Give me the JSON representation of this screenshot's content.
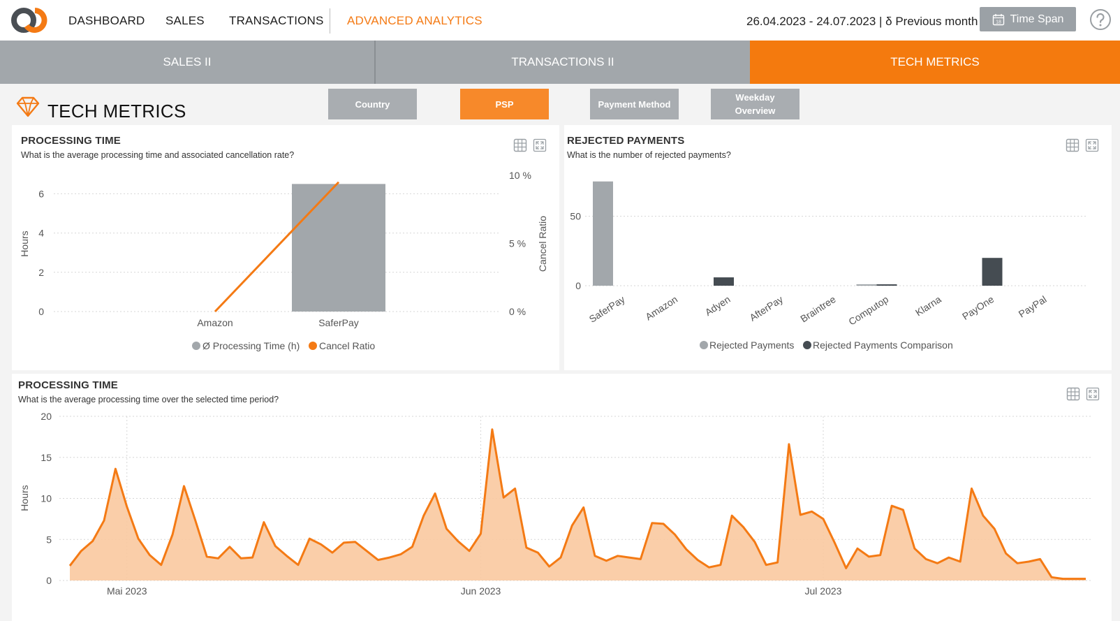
{
  "topnav": {
    "items": [
      "DASHBOARD",
      "SALES",
      "TRANSACTIONS",
      "ADVANCED ANALYTICS"
    ],
    "date_range": "26.04.2023 - 24.07.2023 | δ Previous month",
    "timespan_label": "Time Span",
    "calendar_icon_text": "18"
  },
  "subtabs": [
    "SALES II",
    "TRANSACTIONS II",
    "TECH METRICS"
  ],
  "section": {
    "title": "TECH METRICS",
    "filters": [
      "Country",
      "PSP",
      "Payment Method",
      "Weekday Overview"
    ]
  },
  "colors": {
    "accent": "#f47a14",
    "gray": "#a2a7ab",
    "dark": "#454c52"
  },
  "cards": {
    "processing_time_psp": {
      "title": "PROCESSING TIME",
      "subtitle": "What is the average processing time and associated cancellation rate?"
    },
    "rejected_payments": {
      "title": "REJECTED PAYMENTS",
      "subtitle": "What is the number of rejected payments?"
    },
    "processing_time_period": {
      "title": "PROCESSING TIME",
      "subtitle": "What is the average processing time over the selected time period?"
    }
  },
  "chart_data": [
    {
      "type": "bar",
      "categories": [
        "Amazon",
        "SaferPay"
      ],
      "series": [
        {
          "name": "Ø Processing Time (h)",
          "values": [
            0,
            6.5
          ],
          "axis": "left",
          "color": "#a2a7ab"
        },
        {
          "name": "Cancel Ratio",
          "values": [
            0,
            9.5
          ],
          "axis": "right",
          "kind": "line",
          "color": "#f47a14"
        }
      ],
      "ylabel": "Hours",
      "ylabel_right": "Cancel Ratio",
      "yticks": [
        "0",
        "2",
        "4",
        "6"
      ],
      "y2ticks": [
        "0 %",
        "5 %",
        "10 %"
      ],
      "ylim": [
        0,
        7
      ],
      "y2lim": [
        0,
        10
      ],
      "legend": "bottom"
    },
    {
      "type": "bar",
      "categories": [
        "SaferPay",
        "Amazon",
        "Adyen",
        "AfterPay",
        "Braintree",
        "Computop",
        "Klarna",
        "PayOne",
        "PayPal"
      ],
      "series": [
        {
          "name": "Rejected Payments",
          "values": [
            75,
            0,
            0,
            0,
            0,
            1,
            0,
            0,
            0
          ],
          "color": "#a2a7ab"
        },
        {
          "name": "Rejected Payments Comparison",
          "values": [
            0,
            0,
            6,
            0,
            0,
            1,
            0,
            20,
            0
          ],
          "color": "#454c52"
        }
      ],
      "yticks": [
        "0",
        "50"
      ],
      "ylim": [
        0,
        80
      ],
      "legend": "bottom"
    },
    {
      "type": "area",
      "ylabel": "Hours",
      "yticks": [
        "0",
        "5",
        "10",
        "15",
        "20"
      ],
      "xticks": [
        "Mai 2023",
        "Jun 2023",
        "Jul 2023"
      ],
      "x": [
        "2023-04-26",
        "2023-04-27",
        "2023-04-28",
        "2023-04-29",
        "2023-04-30",
        "2023-05-01",
        "2023-05-02",
        "2023-05-03",
        "2023-05-04",
        "2023-05-05",
        "2023-05-06",
        "2023-05-07",
        "2023-05-08",
        "2023-05-09",
        "2023-05-10",
        "2023-05-11",
        "2023-05-12",
        "2023-05-13",
        "2023-05-14",
        "2023-05-15",
        "2023-05-16",
        "2023-05-17",
        "2023-05-18",
        "2023-05-19",
        "2023-05-20",
        "2023-05-21",
        "2023-05-22",
        "2023-05-23",
        "2023-05-24",
        "2023-05-25",
        "2023-05-26",
        "2023-05-27",
        "2023-05-28",
        "2023-05-29",
        "2023-05-30",
        "2023-05-31",
        "2023-06-01",
        "2023-06-02",
        "2023-06-03",
        "2023-06-04",
        "2023-06-05",
        "2023-06-06",
        "2023-06-07",
        "2023-06-08",
        "2023-06-09",
        "2023-06-10",
        "2023-06-11",
        "2023-06-12",
        "2023-06-13",
        "2023-06-14",
        "2023-06-15",
        "2023-06-16",
        "2023-06-17",
        "2023-06-18",
        "2023-06-19",
        "2023-06-20",
        "2023-06-21",
        "2023-06-22",
        "2023-06-23",
        "2023-06-24",
        "2023-06-25",
        "2023-06-26",
        "2023-06-27",
        "2023-06-28",
        "2023-06-29",
        "2023-06-30",
        "2023-07-01",
        "2023-07-02",
        "2023-07-03",
        "2023-07-04",
        "2023-07-05",
        "2023-07-06",
        "2023-07-07",
        "2023-07-08",
        "2023-07-09",
        "2023-07-10",
        "2023-07-11",
        "2023-07-12",
        "2023-07-13",
        "2023-07-14",
        "2023-07-15",
        "2023-07-16",
        "2023-07-17",
        "2023-07-18",
        "2023-07-19",
        "2023-07-20",
        "2023-07-21",
        "2023-07-22",
        "2023-07-23",
        "2023-07-24"
      ],
      "values": [
        1.8,
        3.6,
        4.8,
        7.3,
        13.6,
        9.0,
        5.1,
        3.1,
        1.9,
        5.6,
        11.5,
        7.3,
        2.9,
        2.7,
        4.1,
        2.7,
        2.8,
        7.1,
        4.2,
        3.0,
        1.9,
        5.1,
        4.4,
        3.4,
        4.6,
        4.7,
        3.6,
        2.5,
        2.8,
        3.2,
        4.1,
        7.9,
        10.6,
        6.3,
        4.8,
        3.6,
        5.7,
        18.4,
        10.1,
        11.2,
        4.0,
        3.4,
        1.7,
        2.8,
        6.7,
        8.9,
        3.0,
        2.4,
        3.0,
        2.8,
        2.6,
        7.0,
        6.9,
        5.6,
        3.8,
        2.5,
        1.6,
        1.9,
        7.9,
        6.5,
        4.7,
        1.9,
        2.2,
        16.6,
        8.0,
        8.4,
        7.5,
        4.6,
        1.5,
        3.9,
        2.9,
        3.1,
        9.1,
        8.6,
        3.9,
        2.6,
        2.1,
        2.8,
        2.3,
        11.2,
        7.9,
        6.3,
        3.3,
        2.1,
        2.3,
        2.6,
        0.4,
        0.2,
        0.2,
        0.2
      ],
      "ylim": [
        0,
        20
      ]
    }
  ]
}
